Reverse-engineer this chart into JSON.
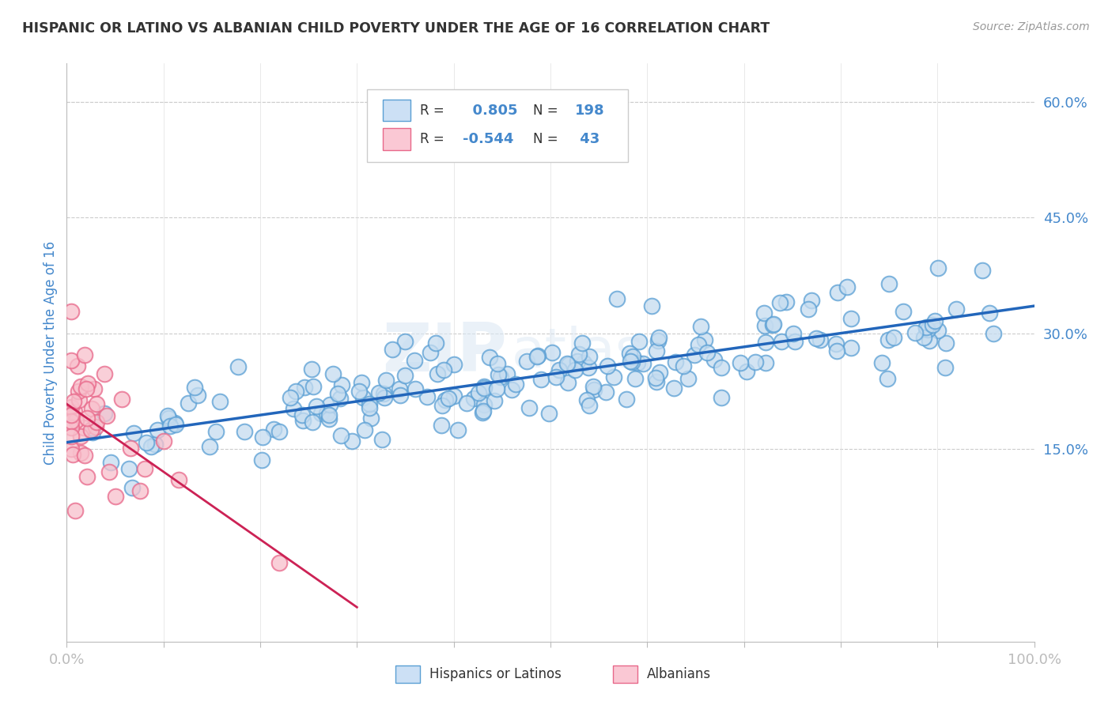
{
  "title": "HISPANIC OR LATINO VS ALBANIAN CHILD POVERTY UNDER THE AGE OF 16 CORRELATION CHART",
  "source": "Source: ZipAtlas.com",
  "ylabel": "Child Poverty Under the Age of 16",
  "xlim": [
    0.0,
    1.0
  ],
  "ylim": [
    -0.1,
    0.65
  ],
  "hispanic_R": 0.805,
  "hispanic_N": 198,
  "albanian_R": -0.544,
  "albanian_N": 43,
  "hispanic_color": "#c5dcf0",
  "albanian_color": "#f8c0cc",
  "hispanic_edge_color": "#5a9fd4",
  "albanian_edge_color": "#e8688a",
  "hispanic_line_color": "#2266bb",
  "albanian_line_color": "#cc2255",
  "legend_box_color_hispanic": "#cce0f5",
  "legend_box_color_albanian": "#fac8d4",
  "background_color": "#ffffff",
  "grid_color": "#cccccc",
  "title_color": "#333333",
  "tick_label_color": "#4488cc",
  "ytick_right_labels": [
    "15.0%",
    "30.0%",
    "45.0%",
    "60.0%"
  ],
  "ytick_right_values": [
    0.15,
    0.3,
    0.45,
    0.6
  ]
}
